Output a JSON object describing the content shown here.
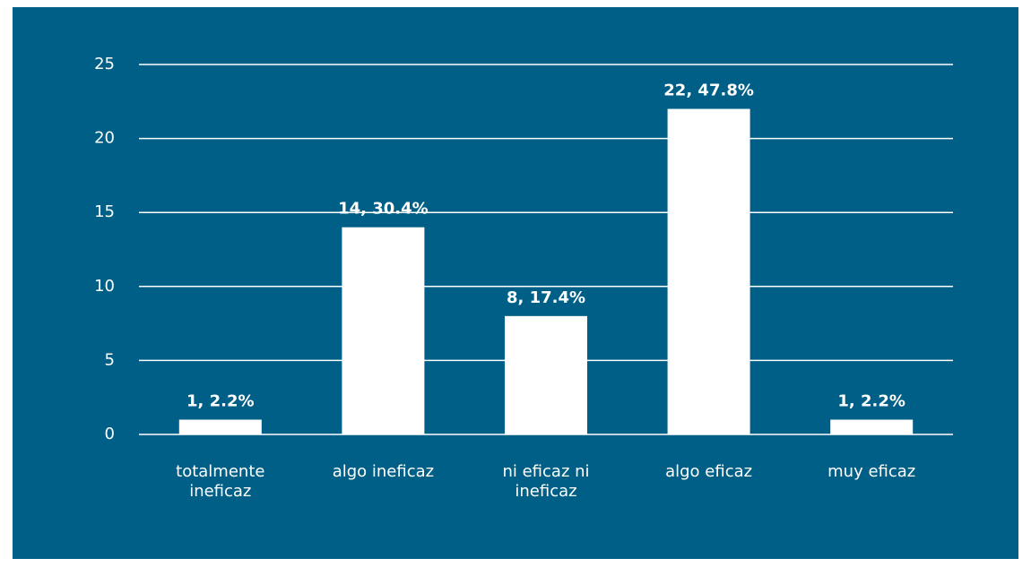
{
  "chart_data": {
    "type": "bar",
    "categories": [
      "totalmente ineficaz",
      "algo ineficaz",
      "ni eficaz ni ineficaz",
      "algo eficaz",
      "muy eficaz"
    ],
    "values": [
      1,
      14,
      8,
      22,
      1
    ],
    "value_labels": [
      "1, 2.2%",
      "14, 30.4%",
      "8, 17.4%",
      "22, 47.8%",
      "1, 2.2%"
    ],
    "color": "#ffffff",
    "ylim": [
      0,
      25
    ],
    "yticks": [
      0,
      5,
      10,
      15,
      20,
      25
    ],
    "grid": true
  }
}
